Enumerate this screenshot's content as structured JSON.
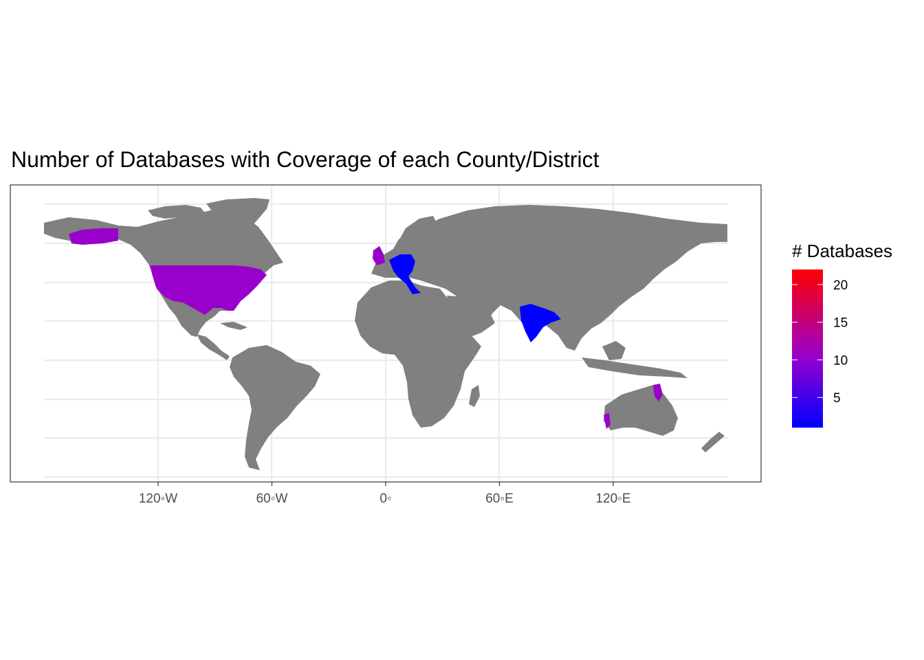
{
  "title": "Number of Databases with Coverage of each County/District",
  "x_axis": {
    "ticks": [
      {
        "lon": -120,
        "label": "120◦W"
      },
      {
        "lon": -60,
        "label": "60◦W"
      },
      {
        "lon": 0,
        "label": "0◦"
      },
      {
        "lon": 60,
        "label": "60◦E"
      },
      {
        "lon": 120,
        "label": "120◦E"
      }
    ],
    "lon_range": [
      -180,
      180
    ]
  },
  "legend": {
    "title": "# Databases",
    "ticks": [
      {
        "value": 5,
        "label": "5"
      },
      {
        "value": 10,
        "label": "10"
      },
      {
        "value": 15,
        "label": "15"
      },
      {
        "value": 20,
        "label": "20"
      }
    ],
    "range": [
      1,
      22
    ],
    "color_low": "#0000ff",
    "color_mid": "#9900cc",
    "color_high": "#ff0000"
  },
  "colors": {
    "land": "#808080",
    "grid": "#ebebeb",
    "panel_border": "#333333",
    "usa_fill": "#9900cc",
    "europe_fill": "#0000ff",
    "india_fill": "#0000ff"
  }
}
